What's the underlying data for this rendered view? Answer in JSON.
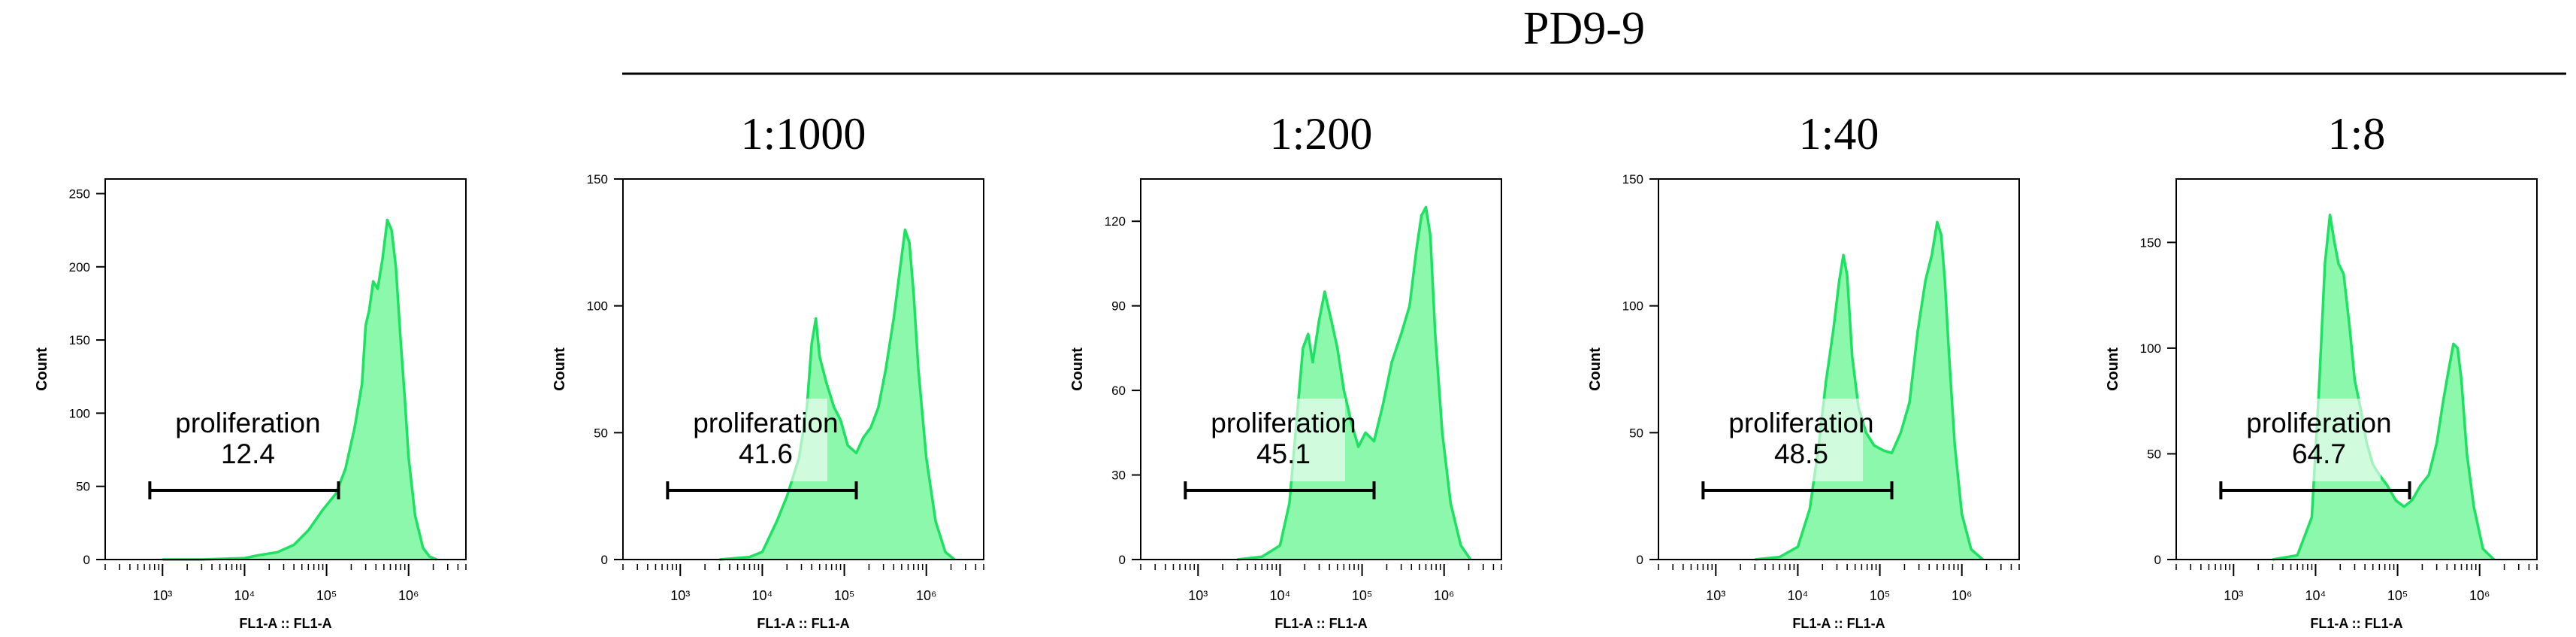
{
  "header": {
    "group_label": "PD9-9"
  },
  "chart_data": [
    {
      "type": "area",
      "title": "",
      "xlabel": "FL1-A :: FL1-A",
      "ylabel": "Count",
      "x_scale": "log",
      "xlim": [
        200,
        5000000
      ],
      "ylim": [
        0,
        260
      ],
      "yticks": [
        0,
        50,
        100,
        150,
        200,
        250
      ],
      "xticks": [
        "10³",
        "10⁴",
        "10⁵",
        "10⁶"
      ],
      "series": [
        {
          "x": [
            1000,
            3000,
            10000,
            15000,
            25000,
            40000,
            60000,
            90000,
            130000,
            170000,
            220000,
            270000,
            300000,
            330000,
            370000,
            420000,
            480000,
            550000,
            620000,
            700000,
            800000,
            900000,
            1000000,
            1200000,
            1500000,
            1800000,
            2200000
          ],
          "values": [
            0,
            0,
            1,
            3,
            5,
            10,
            20,
            34,
            45,
            62,
            90,
            120,
            160,
            170,
            190,
            185,
            205,
            232,
            225,
            200,
            150,
            110,
            70,
            30,
            8,
            2,
            0
          ]
        }
      ],
      "gate": {
        "name": "proliferation",
        "percent": "12.4",
        "x_range": [
          700,
          140000
        ]
      },
      "fill_color": "#8bf8ab",
      "line_color": "#1de160"
    },
    {
      "type": "area",
      "title": "1:1000",
      "xlabel": "FL1-A :: FL1-A",
      "ylabel": "Count",
      "x_scale": "log",
      "xlim": [
        200,
        5000000
      ],
      "ylim": [
        0,
        150
      ],
      "yticks": [
        0,
        50,
        100,
        150
      ],
      "xticks": [
        "10³",
        "10⁴",
        "10⁵",
        "10⁶"
      ],
      "series": [
        {
          "x": [
            3000,
            7000,
            10000,
            15000,
            20000,
            28000,
            35000,
            40000,
            45000,
            50000,
            60000,
            75000,
            90000,
            110000,
            140000,
            170000,
            210000,
            260000,
            320000,
            400000,
            480000,
            550000,
            620000,
            700000,
            800000,
            1000000,
            1300000,
            1700000,
            2200000
          ],
          "values": [
            0,
            1,
            3,
            15,
            25,
            40,
            60,
            85,
            95,
            80,
            70,
            60,
            55,
            45,
            42,
            48,
            52,
            60,
            75,
            95,
            115,
            130,
            125,
            105,
            75,
            40,
            15,
            3,
            0
          ]
        }
      ],
      "gate": {
        "name": "proliferation",
        "percent": "41.6",
        "x_range": [
          700,
          140000
        ]
      },
      "fill_color": "#8bf8ab",
      "line_color": "#1de160"
    },
    {
      "type": "area",
      "title": "1:200",
      "xlabel": "FL1-A :: FL1-A",
      "ylabel": "Count",
      "x_scale": "log",
      "xlim": [
        200,
        5000000
      ],
      "ylim": [
        0,
        135
      ],
      "yticks": [
        0,
        30,
        60,
        90,
        120
      ],
      "xticks": [
        "10³",
        "10⁴",
        "10⁵",
        "10⁶"
      ],
      "series": [
        {
          "x": [
            3000,
            6000,
            10000,
            13000,
            16000,
            19000,
            22000,
            25000,
            30000,
            35000,
            42000,
            50000,
            60000,
            75000,
            90000,
            110000,
            140000,
            180000,
            230000,
            300000,
            380000,
            460000,
            530000,
            600000,
            680000,
            780000,
            950000,
            1200000,
            1600000,
            2100000
          ],
          "values": [
            0,
            1,
            5,
            20,
            50,
            75,
            80,
            70,
            85,
            95,
            85,
            75,
            60,
            48,
            40,
            45,
            42,
            55,
            70,
            80,
            90,
            110,
            122,
            125,
            115,
            80,
            45,
            20,
            5,
            0
          ]
        }
      ],
      "gate": {
        "name": "proliferation",
        "percent": "45.1",
        "x_range": [
          700,
          140000
        ]
      },
      "fill_color": "#8bf8ab",
      "line_color": "#1de160"
    },
    {
      "type": "area",
      "title": "1:40",
      "xlabel": "FL1-A :: FL1-A",
      "ylabel": "Count",
      "x_scale": "log",
      "xlim": [
        200,
        5000000
      ],
      "ylim": [
        0,
        150
      ],
      "yticks": [
        0,
        50,
        100,
        150
      ],
      "xticks": [
        "10³",
        "10⁴",
        "10⁵",
        "10⁶"
      ],
      "series": [
        {
          "x": [
            3000,
            6000,
            10000,
            14000,
            18000,
            22000,
            27000,
            32000,
            36000,
            40000,
            46000,
            55000,
            68000,
            85000,
            110000,
            140000,
            180000,
            230000,
            290000,
            360000,
            430000,
            500000,
            560000,
            620000,
            700000,
            820000,
            1000000,
            1300000,
            1800000
          ],
          "values": [
            0,
            1,
            5,
            20,
            45,
            70,
            90,
            110,
            120,
            112,
            80,
            60,
            50,
            45,
            43,
            42,
            50,
            62,
            90,
            110,
            120,
            133,
            128,
            110,
            80,
            45,
            18,
            4,
            0
          ]
        }
      ],
      "gate": {
        "name": "proliferation",
        "percent": "48.5",
        "x_range": [
          700,
          140000
        ]
      },
      "fill_color": "#8bf8ab",
      "line_color": "#1de160"
    },
    {
      "type": "area",
      "title": "1:8",
      "xlabel": "FL1-A :: FL1-A",
      "ylabel": "Count",
      "x_scale": "log",
      "xlim": [
        200,
        5000000
      ],
      "ylim": [
        0,
        180
      ],
      "yticks": [
        0,
        50,
        100,
        150
      ],
      "xticks": [
        "10³",
        "10⁴",
        "10⁵",
        "10⁶"
      ],
      "series": [
        {
          "x": [
            3000,
            6000,
            9000,
            11000,
            13000,
            15000,
            17000,
            19000,
            22000,
            26000,
            30000,
            36000,
            42000,
            50000,
            60000,
            75000,
            95000,
            120000,
            150000,
            190000,
            240000,
            300000,
            360000,
            420000,
            480000,
            540000,
            600000,
            700000,
            850000,
            1100000,
            1500000
          ],
          "values": [
            0,
            2,
            20,
            80,
            140,
            163,
            150,
            140,
            135,
            110,
            85,
            70,
            55,
            45,
            40,
            35,
            28,
            25,
            28,
            35,
            40,
            55,
            75,
            90,
            102,
            100,
            85,
            50,
            25,
            5,
            0
          ]
        }
      ],
      "gate": {
        "name": "proliferation",
        "percent": "64.7",
        "x_range": [
          700,
          140000
        ]
      },
      "fill_color": "#8bf8ab",
      "line_color": "#1de160"
    }
  ]
}
